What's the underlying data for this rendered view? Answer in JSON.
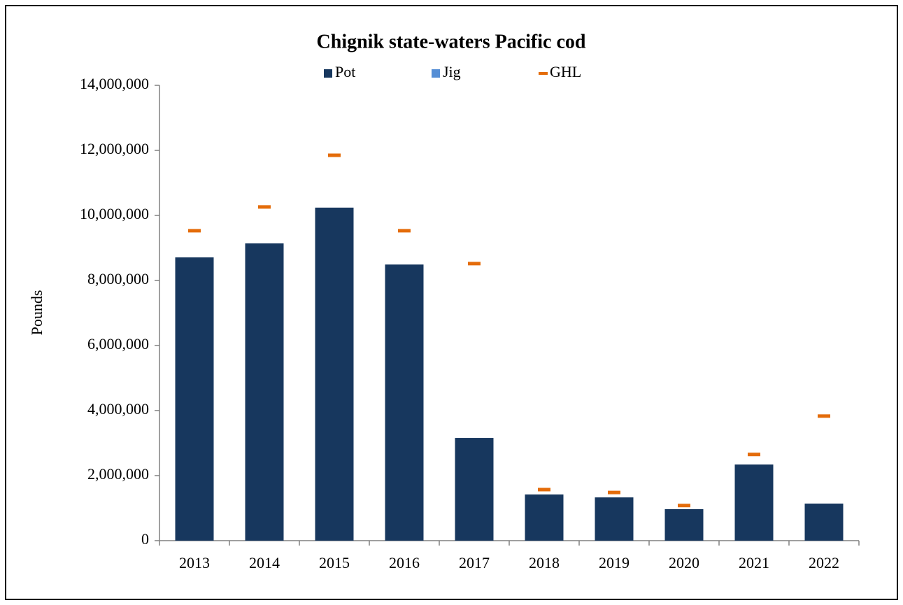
{
  "chart_data": {
    "type": "bar",
    "stacked": true,
    "title": "Chignik state-waters Pacific cod",
    "y_label": "Pounds",
    "categories": [
      "2013",
      "2014",
      "2015",
      "2016",
      "2017",
      "2018",
      "2019",
      "2020",
      "2021",
      "2022"
    ],
    "series": [
      {
        "name": "Pot",
        "type": "bar",
        "color": "#17375e",
        "values": [
          8710000,
          9140000,
          10240000,
          8490000,
          3160000,
          1420000,
          1330000,
          970000,
          2340000,
          1140000
        ]
      },
      {
        "name": "Jig",
        "type": "bar",
        "color": "#558ed5",
        "values": [
          0,
          0,
          0,
          0,
          0,
          0,
          0,
          0,
          0,
          0
        ]
      },
      {
        "name": "GHL",
        "type": "marker",
        "color": "#e46c0a",
        "values": [
          9530000,
          10260000,
          11850000,
          9530000,
          8520000,
          1570000,
          1480000,
          1080000,
          2650000,
          3830000
        ]
      }
    ],
    "ylim": [
      0,
      14000000
    ],
    "yticks": [
      0,
      {
        "value": 2000000,
        "label": "2,000,000"
      },
      {
        "value": 4000000,
        "label": "4,000,000"
      },
      {
        "value": 6000000,
        "label": "6,000,000"
      },
      {
        "value": 8000000,
        "label": "8,000,000"
      },
      {
        "value": 10000000,
        "label": "10,000,000"
      },
      {
        "value": 12000000,
        "label": "12,000,000"
      },
      {
        "value": 14000000,
        "label": "14,000,000"
      }
    ],
    "grid": false,
    "legend": "top"
  }
}
